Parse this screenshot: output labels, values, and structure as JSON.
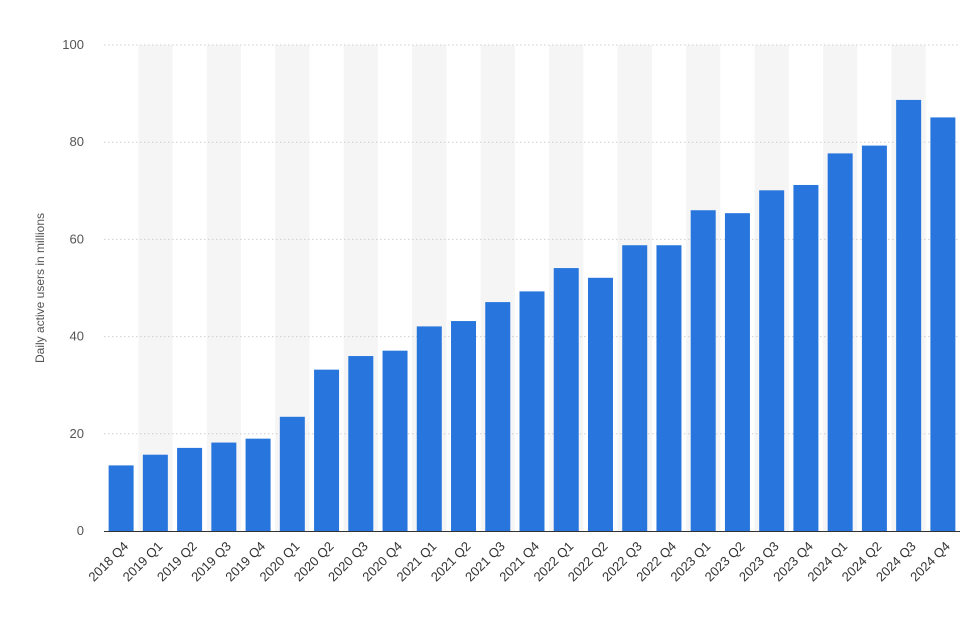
{
  "chart_data": {
    "type": "bar",
    "title": "",
    "xlabel": "",
    "ylabel": "Daily active users in millions",
    "ylim": [
      0,
      100
    ],
    "yticks": [
      0,
      20,
      40,
      60,
      80,
      100
    ],
    "grid": true,
    "categories": [
      "2018 Q4",
      "2019 Q1",
      "2019 Q2",
      "2019 Q3",
      "2019 Q4",
      "2020 Q1",
      "2020 Q2",
      "2020 Q3",
      "2020 Q4",
      "2021 Q1",
      "2021 Q2",
      "2021 Q3",
      "2021 Q4",
      "2022 Q1",
      "2022 Q2",
      "2022 Q3",
      "2022 Q4",
      "2023 Q1",
      "2023 Q2",
      "2023 Q3",
      "2023 Q4",
      "2024 Q1",
      "2024 Q2",
      "2024 Q3",
      "2024 Q4"
    ],
    "values": [
      13.5,
      15.7,
      17.1,
      18.2,
      19.0,
      23.5,
      33.2,
      36.0,
      37.1,
      42.1,
      43.2,
      47.1,
      49.3,
      54.1,
      52.1,
      58.8,
      58.8,
      66.0,
      65.4,
      70.1,
      71.2,
      77.7,
      79.3,
      88.7,
      85.1
    ],
    "colors": {
      "bar": "#2876dd",
      "grid": "#cfcfcf",
      "band": "#f5f5f5",
      "axis": "#333333"
    }
  }
}
